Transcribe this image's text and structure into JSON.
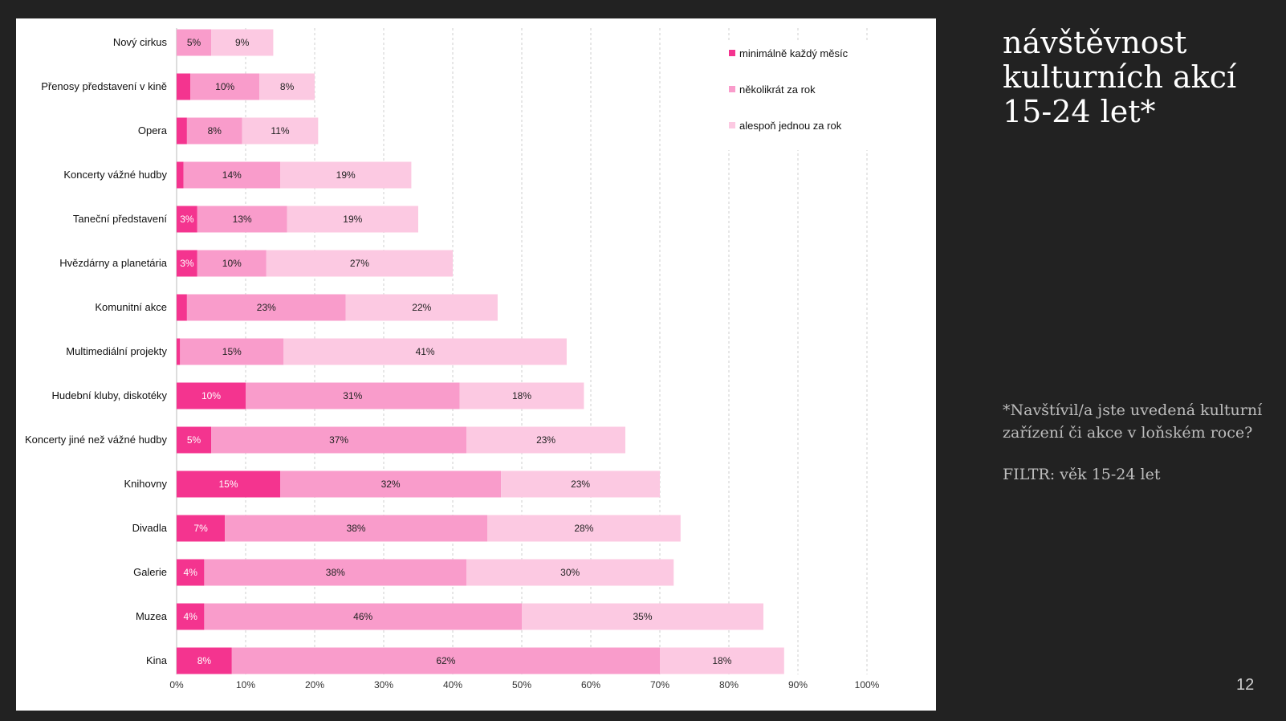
{
  "slide": {
    "title_lines": [
      "návštěvnost",
      "kulturních akcí",
      "15-24 let*"
    ],
    "note_lines": [
      "*Navštívil/a jste uvedená kulturní",
      "zařízení či akce v loňském roce?"
    ],
    "filter": "FILTR: věk 15-24 let",
    "page_number": "12"
  },
  "colors": {
    "background": "#222222",
    "monthly": "#f4348f",
    "several": "#f99ccb",
    "once": "#fcc9e2"
  },
  "chart_data": {
    "type": "bar",
    "orientation": "horizontal",
    "stacked": true,
    "categories": [
      "Nový cirkus",
      "Přenosy představení v kině",
      "Opera",
      "Koncerty vážné hudby",
      "Taneční představení",
      "Hvězdárny a planetária",
      "Komunitní akce",
      "Multimediální projekty",
      "Hudební kluby, diskotéky",
      "Koncerty jiné než vážné hudby",
      "Knihovny",
      "Divadla",
      "Galerie",
      "Muzea",
      "Kina"
    ],
    "series": [
      {
        "name": "minimálně každý měsíc",
        "color": "#f4348f",
        "values": [
          0,
          2,
          1.5,
          1,
          3,
          3,
          1.5,
          0.5,
          10,
          5,
          15,
          7,
          4,
          4,
          8
        ],
        "labels": [
          "",
          "",
          "",
          "",
          "3%",
          "3%",
          "",
          "",
          "10%",
          "5%",
          "15%",
          "7%",
          "4%",
          "4%",
          "8%"
        ]
      },
      {
        "name": "několikrát za rok",
        "color": "#f99ccb",
        "values": [
          5,
          10,
          8,
          14,
          13,
          10,
          23,
          15,
          31,
          37,
          32,
          38,
          38,
          46,
          62
        ],
        "labels": [
          "5%",
          "10%",
          "8%",
          "14%",
          "13%",
          "10%",
          "23%",
          "15%",
          "31%",
          "37%",
          "32%",
          "38%",
          "38%",
          "46%",
          "62%"
        ]
      },
      {
        "name": "alespoň jednou za rok",
        "color": "#fcc9e2",
        "values": [
          9,
          8,
          11,
          19,
          19,
          27,
          22,
          41,
          18,
          23,
          23,
          28,
          30,
          35,
          18
        ],
        "labels": [
          "9%",
          "8%",
          "11%",
          "19%",
          "19%",
          "27%",
          "22%",
          "41%",
          "18%",
          "23%",
          "23%",
          "28%",
          "30%",
          "35%",
          "18%"
        ]
      }
    ],
    "xlim": [
      0,
      100
    ],
    "x_ticks": [
      "0%",
      "10%",
      "20%",
      "30%",
      "40%",
      "50%",
      "60%",
      "70%",
      "80%",
      "90%",
      "100%"
    ],
    "grid": "vertical dashed",
    "legend_position": "top-right"
  }
}
